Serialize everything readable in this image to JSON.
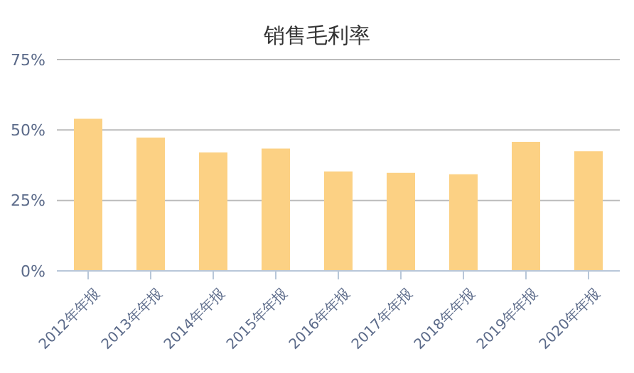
{
  "chart_data": {
    "type": "bar",
    "title": "销售毛利率",
    "categories": [
      "2012年年报",
      "2013年年报",
      "2014年年报",
      "2015年年报",
      "2016年年报",
      "2017年年报",
      "2018年年报",
      "2019年年报",
      "2020年年报"
    ],
    "values": [
      54.0,
      47.3,
      42.0,
      43.4,
      35.3,
      34.8,
      34.3,
      45.8,
      42.5
    ],
    "color": "#fcd184",
    "ylim": [
      0,
      75
    ],
    "yticks": [
      {
        "value": 0,
        "label": "0%"
      },
      {
        "value": 25,
        "label": "25%"
      },
      {
        "value": 50,
        "label": "50%"
      },
      {
        "value": 75,
        "label": "75%"
      }
    ],
    "grid": "y"
  }
}
